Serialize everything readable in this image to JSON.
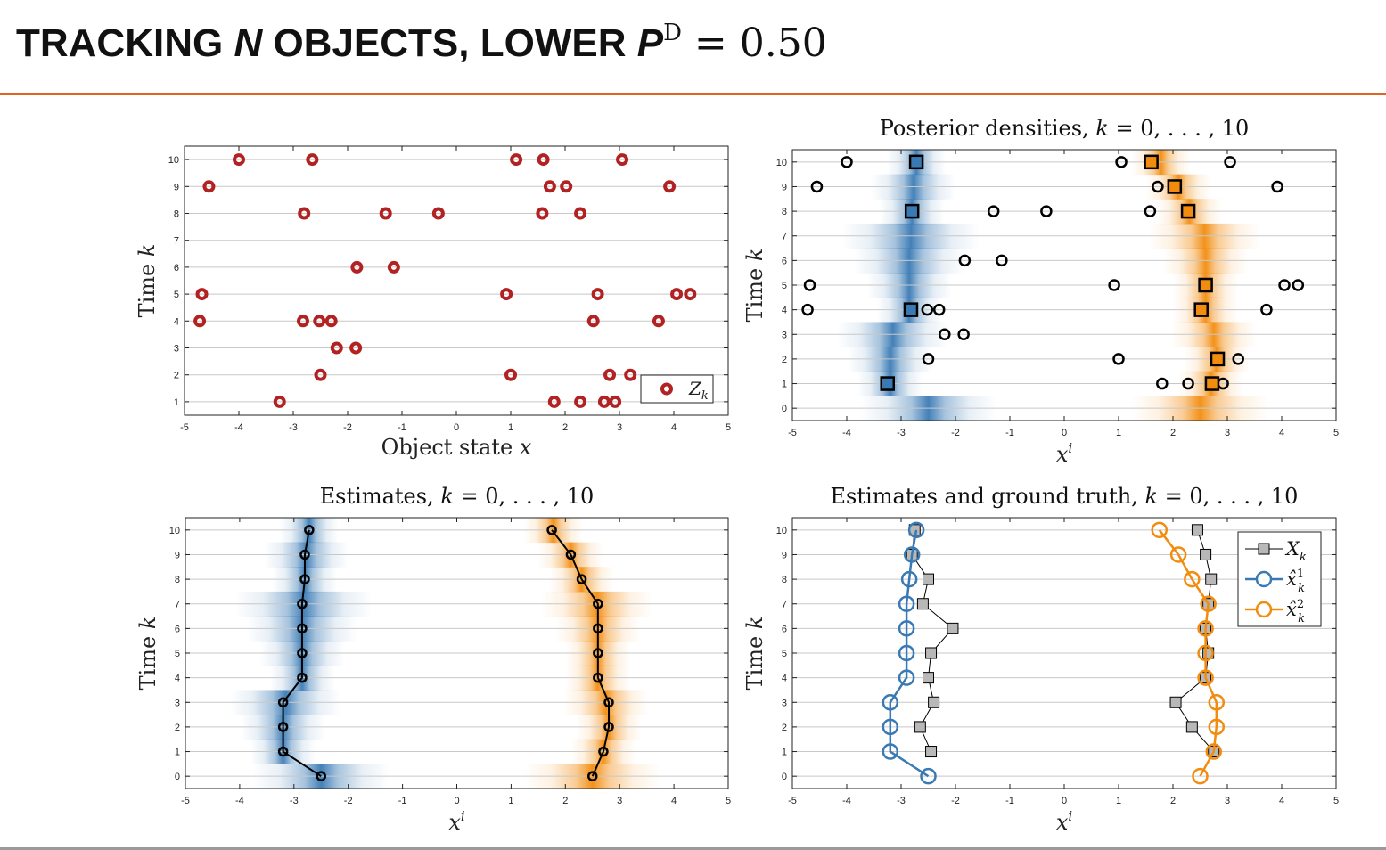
{
  "slide": {
    "title_pre": "TRACKING ",
    "title_n": "N",
    "title_mid": " OBJECTS, LOWER ",
    "title_p": "P",
    "title_sup": "D",
    "title_eq": " = 0.50"
  },
  "colors": {
    "accent_rule": "#e0661f",
    "measurement": "#b22222",
    "object1": "#3a7ab4",
    "object2": "#f28c0f",
    "ground_truth": "#b8b8b8",
    "grid": "#c8c8c8"
  },
  "chart_data": [
    {
      "id": "measurements",
      "type": "scatter",
      "title": "",
      "xlabel": "Object state x",
      "ylabel": "Time k",
      "xlim": [
        -5,
        5
      ],
      "ylim": [
        0.5,
        10.5
      ],
      "xticks": [
        "-5",
        "-4",
        "-3",
        "-2",
        "-1",
        "0",
        "1",
        "2",
        "3",
        "4",
        "5"
      ],
      "yticks": [
        "1",
        "2",
        "3",
        "4",
        "5",
        "6",
        "7",
        "8",
        "9",
        "10"
      ],
      "grid": "horizontal",
      "legend": {
        "position": "bottom-right",
        "entries": [
          "Z_k"
        ]
      },
      "points": [
        {
          "k": 10,
          "x": [
            -4.0,
            -2.65,
            1.1,
            1.6,
            3.05
          ]
        },
        {
          "k": 9,
          "x": [
            -4.55,
            1.72,
            2.02,
            3.92
          ]
        },
        {
          "k": 8,
          "x": [
            -2.8,
            -1.3,
            -0.33,
            1.58,
            2.28
          ]
        },
        {
          "k": 7,
          "x": []
        },
        {
          "k": 6,
          "x": [
            -1.83,
            -1.15
          ]
        },
        {
          "k": 5,
          "x": [
            -4.68,
            0.92,
            2.6,
            4.05,
            4.3
          ]
        },
        {
          "k": 4,
          "x": [
            -4.72,
            -2.82,
            -2.52,
            -2.3,
            2.52,
            3.72
          ]
        },
        {
          "k": 3,
          "x": [
            -2.2,
            -1.85
          ]
        },
        {
          "k": 2,
          "x": [
            -2.5,
            1.0,
            2.82,
            3.2
          ]
        },
        {
          "k": 1,
          "x": [
            -3.25,
            1.8,
            2.28,
            2.72,
            2.92
          ]
        }
      ]
    },
    {
      "id": "posterior",
      "type": "scatter",
      "title": "Posterior densities, k = 0, . . . , 10",
      "xlabel": "x^i",
      "ylabel": "Time k",
      "xlim": [
        -5,
        5
      ],
      "ylim": [
        -0.5,
        10.5
      ],
      "xticks": [
        "-5",
        "-4",
        "-3",
        "-2",
        "-1",
        "0",
        "1",
        "2",
        "3",
        "4",
        "5"
      ],
      "yticks": [
        "0",
        "1",
        "2",
        "3",
        "4",
        "5",
        "6",
        "7",
        "8",
        "9",
        "10"
      ],
      "grid": "horizontal",
      "measurements": [
        {
          "k": 10,
          "x": [
            -4.0,
            1.05,
            3.05
          ]
        },
        {
          "k": 9,
          "x": [
            -4.55,
            1.72,
            3.92
          ]
        },
        {
          "k": 8,
          "x": [
            -1.3,
            -0.33,
            1.58
          ]
        },
        {
          "k": 7,
          "x": []
        },
        {
          "k": 6,
          "x": [
            -1.83,
            -1.15
          ]
        },
        {
          "k": 5,
          "x": [
            -4.68,
            0.92,
            4.05,
            4.3
          ]
        },
        {
          "k": 4,
          "x": [
            -4.72,
            -2.52,
            -2.3,
            3.72
          ]
        },
        {
          "k": 3,
          "x": [
            -2.2,
            -1.85
          ]
        },
        {
          "k": 2,
          "x": [
            -2.5,
            1.0,
            3.2
          ]
        },
        {
          "k": 1,
          "x": [
            1.8,
            2.28,
            2.92
          ]
        }
      ],
      "detections": [
        {
          "k": 10,
          "obj": 1,
          "x": -2.72
        },
        {
          "k": 10,
          "obj": 2,
          "x": 1.6
        },
        {
          "k": 9,
          "obj": 2,
          "x": 2.03
        },
        {
          "k": 8,
          "obj": 1,
          "x": -2.8
        },
        {
          "k": 8,
          "obj": 2,
          "x": 2.28
        },
        {
          "k": 5,
          "obj": 2,
          "x": 2.6
        },
        {
          "k": 4,
          "obj": 1,
          "x": -2.82
        },
        {
          "k": 4,
          "obj": 2,
          "x": 2.52
        },
        {
          "k": 2,
          "obj": 2,
          "x": 2.82
        },
        {
          "k": 1,
          "obj": 1,
          "x": -3.25
        },
        {
          "k": 1,
          "obj": 2,
          "x": 2.72
        }
      ],
      "density": {
        "obj1": [
          {
            "k": 0,
            "mean": -2.5,
            "std": 0.42
          },
          {
            "k": 1,
            "mean": -3.2,
            "std": 0.2
          },
          {
            "k": 2,
            "mean": -3.2,
            "std": 0.26
          },
          {
            "k": 3,
            "mean": -3.15,
            "std": 0.34
          },
          {
            "k": 4,
            "mean": -2.85,
            "std": 0.2
          },
          {
            "k": 5,
            "mean": -2.85,
            "std": 0.26
          },
          {
            "k": 6,
            "mean": -2.85,
            "std": 0.34
          },
          {
            "k": 7,
            "mean": -2.82,
            "std": 0.42
          },
          {
            "k": 8,
            "mean": -2.8,
            "std": 0.2
          },
          {
            "k": 9,
            "mean": -2.77,
            "std": 0.26
          },
          {
            "k": 10,
            "mean": -2.72,
            "std": 0.18
          }
        ],
        "obj2": [
          {
            "k": 0,
            "mean": 2.5,
            "std": 0.42
          },
          {
            "k": 1,
            "mean": 2.7,
            "std": 0.2
          },
          {
            "k": 2,
            "mean": 2.8,
            "std": 0.2
          },
          {
            "k": 3,
            "mean": 2.75,
            "std": 0.26
          },
          {
            "k": 4,
            "mean": 2.6,
            "std": 0.2
          },
          {
            "k": 5,
            "mean": 2.6,
            "std": 0.2
          },
          {
            "k": 6,
            "mean": 2.6,
            "std": 0.26
          },
          {
            "k": 7,
            "mean": 2.58,
            "std": 0.34
          },
          {
            "k": 8,
            "mean": 2.3,
            "std": 0.2
          },
          {
            "k": 9,
            "mean": 2.1,
            "std": 0.2
          },
          {
            "k": 10,
            "mean": 1.78,
            "std": 0.18
          }
        ]
      }
    },
    {
      "id": "estimates",
      "type": "line",
      "title": "Estimates, k = 0, . . . , 10",
      "xlabel": "x^i",
      "ylabel": "Time k",
      "xlim": [
        -5,
        5
      ],
      "ylim": [
        -0.5,
        10.5
      ],
      "xticks": [
        "-5",
        "-4",
        "-3",
        "-2",
        "-1",
        "0",
        "1",
        "2",
        "3",
        "4",
        "5"
      ],
      "yticks": [
        "0",
        "1",
        "2",
        "3",
        "4",
        "5",
        "6",
        "7",
        "8",
        "9",
        "10"
      ],
      "grid": "horizontal",
      "series": [
        {
          "k": [
            0,
            1,
            2,
            3,
            4,
            5,
            6,
            7,
            8,
            9,
            10
          ],
          "x": [
            -2.5,
            -3.2,
            -3.2,
            -3.2,
            -2.85,
            -2.85,
            -2.85,
            -2.85,
            -2.8,
            -2.8,
            -2.72
          ]
        },
        {
          "k": [
            0,
            1,
            2,
            3,
            4,
            5,
            6,
            7,
            8,
            9,
            10
          ],
          "x": [
            2.5,
            2.7,
            2.8,
            2.8,
            2.6,
            2.6,
            2.6,
            2.6,
            2.3,
            2.1,
            1.75
          ]
        }
      ]
    },
    {
      "id": "estimates_truth",
      "type": "line",
      "title": "Estimates and ground truth, k = 0, . . . , 10",
      "xlabel": "x^i",
      "ylabel": "Time k",
      "xlim": [
        -5,
        5
      ],
      "ylim": [
        -0.5,
        10.5
      ],
      "xticks": [
        "-5",
        "-4",
        "-3",
        "-2",
        "-1",
        "0",
        "1",
        "2",
        "3",
        "4",
        "5"
      ],
      "yticks": [
        "0",
        "1",
        "2",
        "3",
        "4",
        "5",
        "6",
        "7",
        "8",
        "9",
        "10"
      ],
      "grid": "horizontal",
      "legend": {
        "position": "top-right",
        "entries": [
          "X_k",
          "x̂_k^1",
          "x̂_k^2"
        ]
      },
      "ground_truth": [
        {
          "k": [
            1,
            2,
            3,
            4,
            5,
            6,
            7,
            8,
            9,
            10
          ],
          "x": [
            -2.45,
            -2.65,
            -2.4,
            -2.5,
            -2.45,
            -2.05,
            -2.6,
            -2.5,
            -2.8,
            -2.75
          ]
        },
        {
          "k": [
            1,
            2,
            3,
            4,
            5,
            6,
            7,
            8,
            9,
            10
          ],
          "x": [
            2.75,
            2.35,
            2.05,
            2.6,
            2.65,
            2.6,
            2.65,
            2.7,
            2.6,
            2.45
          ]
        }
      ],
      "series": [
        {
          "k": [
            0,
            1,
            2,
            3,
            4,
            5,
            6,
            7,
            8,
            9,
            10
          ],
          "x": [
            -2.5,
            -3.2,
            -3.2,
            -3.2,
            -2.9,
            -2.9,
            -2.9,
            -2.9,
            -2.85,
            -2.8,
            -2.72
          ]
        },
        {
          "k": [
            0,
            1,
            2,
            3,
            4,
            5,
            6,
            7,
            8,
            9,
            10
          ],
          "x": [
            2.5,
            2.75,
            2.8,
            2.8,
            2.6,
            2.6,
            2.6,
            2.65,
            2.35,
            2.1,
            1.75
          ]
        }
      ]
    }
  ]
}
